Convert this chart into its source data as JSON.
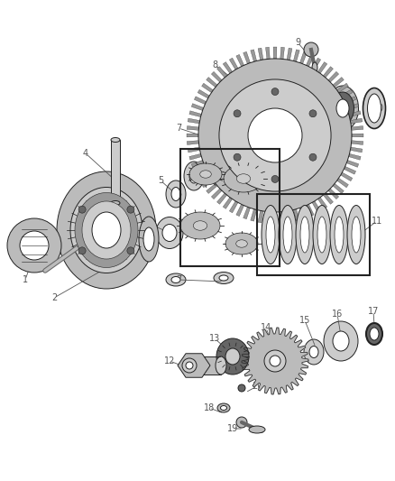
{
  "bg_color": "#ffffff",
  "label_color": "#555555",
  "edge_color": "#222222",
  "gear_color": "#999999",
  "mid_color": "#bbbbbb",
  "light_color": "#cccccc",
  "dark_color": "#666666"
}
